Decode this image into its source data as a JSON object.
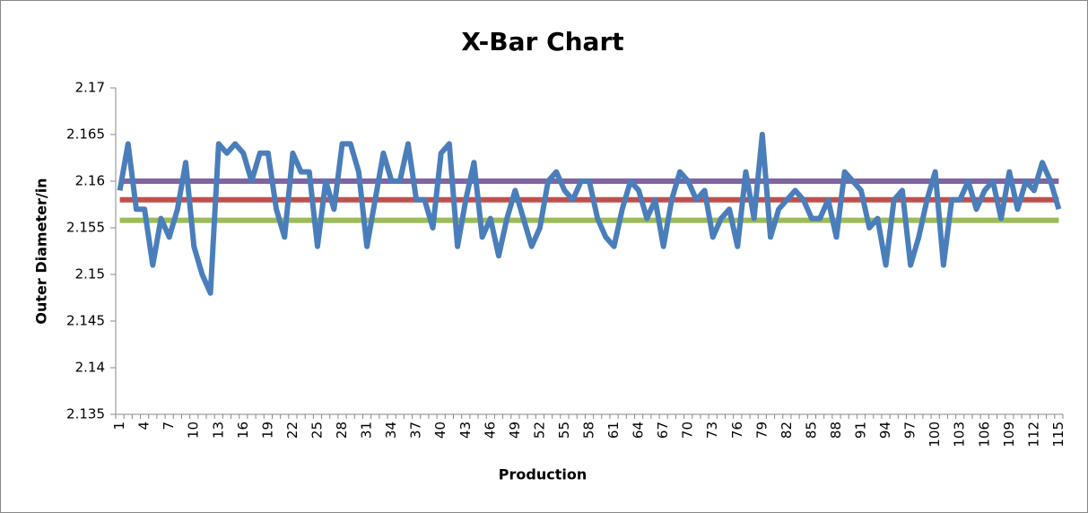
{
  "chart_data": {
    "type": "line",
    "title": "X-Bar Chart",
    "x_label": "Production",
    "y_label": "Outer Diameter/in",
    "categories": [
      "1",
      null,
      null,
      "4",
      null,
      null,
      "7",
      null,
      null,
      "10",
      null,
      null,
      "13",
      null,
      null,
      "16",
      null,
      null,
      "19",
      null,
      null,
      "22",
      null,
      null,
      "25",
      null,
      null,
      "28",
      null,
      null,
      "31",
      null,
      null,
      "34",
      null,
      null,
      "37",
      null,
      null,
      "40",
      null,
      null,
      "43",
      null,
      null,
      "46",
      null,
      null,
      "49",
      null,
      null,
      "52",
      null,
      null,
      "55",
      null,
      null,
      "58",
      null,
      null,
      "61",
      null,
      null,
      "64",
      null,
      null,
      "67",
      null,
      null,
      "70",
      null,
      null,
      "73",
      null,
      null,
      "76",
      null,
      null,
      "79",
      null,
      null,
      "82",
      null,
      null,
      "85",
      null,
      null,
      "88",
      null,
      null,
      "91",
      null,
      null,
      "94",
      null,
      null,
      "97",
      null,
      null,
      "100",
      null,
      null,
      "103",
      null,
      null,
      "106",
      null,
      null,
      "109",
      null,
      null,
      "112",
      null,
      null,
      "115"
    ],
    "series": [
      {
        "color": "#4a7ebb",
        "values": [
          2.159,
          2.164,
          2.157,
          2.157,
          2.151,
          2.156,
          2.154,
          2.157,
          2.162,
          2.153,
          2.15,
          2.148,
          2.164,
          2.163,
          2.164,
          2.163,
          2.16,
          2.163,
          2.163,
          2.157,
          2.154,
          2.163,
          2.161,
          2.161,
          2.153,
          2.16,
          2.157,
          2.164,
          2.164,
          2.161,
          2.153,
          2.158,
          2.163,
          2.16,
          2.16,
          2.164,
          2.158,
          2.158,
          2.155,
          2.163,
          2.164,
          2.153,
          2.158,
          2.162,
          2.154,
          2.156,
          2.152,
          2.156,
          2.159,
          2.156,
          2.153,
          2.155,
          2.16,
          2.161,
          2.159,
          2.158,
          2.16,
          2.16,
          2.156,
          2.154,
          2.153,
          2.157,
          2.16,
          2.159,
          2.156,
          2.158,
          2.153,
          2.158,
          2.161,
          2.16,
          2.158,
          2.159,
          2.154,
          2.156,
          2.157,
          2.153,
          2.161,
          2.156,
          2.165,
          2.154,
          2.157,
          2.158,
          2.159,
          2.158,
          2.156,
          2.156,
          2.158,
          2.154,
          2.161,
          2.16,
          2.159,
          2.155,
          2.156,
          2.151,
          2.158,
          2.159,
          2.151,
          2.154,
          2.158,
          2.161,
          2.151,
          2.158,
          2.158,
          2.16,
          2.157,
          2.159,
          2.16,
          2.156,
          2.161,
          2.157,
          2.16,
          2.159,
          2.162,
          2.16,
          2.157
        ]
      },
      {
        "color": "#8064a2",
        "values": [
          2.16,
          2.16,
          2.16,
          2.16,
          2.16,
          2.16,
          2.16,
          2.16,
          2.16,
          2.16,
          2.16,
          2.16,
          2.16,
          2.16,
          2.16,
          2.16,
          2.16,
          2.16,
          2.16,
          2.16,
          2.16,
          2.16,
          2.16,
          2.16,
          2.16,
          2.16,
          2.16,
          2.16,
          2.16,
          2.16,
          2.16,
          2.16,
          2.16,
          2.16,
          2.16,
          2.16,
          2.16,
          2.16,
          2.16,
          2.16,
          2.16,
          2.16,
          2.16,
          2.16,
          2.16,
          2.16,
          2.16,
          2.16,
          2.16,
          2.16,
          2.16,
          2.16,
          2.16,
          2.16,
          2.16,
          2.16,
          2.16,
          2.16,
          2.16,
          2.16,
          2.16,
          2.16,
          2.16,
          2.16,
          2.16,
          2.16,
          2.16,
          2.16,
          2.16,
          2.16,
          2.16,
          2.16,
          2.16,
          2.16,
          2.16,
          2.16,
          2.16,
          2.16,
          2.16,
          2.16,
          2.16,
          2.16,
          2.16,
          2.16,
          2.16,
          2.16,
          2.16,
          2.16,
          2.16,
          2.16,
          2.16,
          2.16,
          2.16,
          2.16,
          2.16,
          2.16,
          2.16,
          2.16,
          2.16,
          2.16,
          2.16,
          2.16,
          2.16,
          2.16,
          2.16,
          2.16,
          2.16,
          2.16,
          2.16,
          2.16,
          2.16,
          2.16,
          2.16,
          2.16,
          2.16
        ]
      },
      {
        "color": "#c0504d",
        "values": [
          2.158,
          2.158,
          2.158,
          2.158,
          2.158,
          2.158,
          2.158,
          2.158,
          2.158,
          2.158,
          2.158,
          2.158,
          2.158,
          2.158,
          2.158,
          2.158,
          2.158,
          2.158,
          2.158,
          2.158,
          2.158,
          2.158,
          2.158,
          2.158,
          2.158,
          2.158,
          2.158,
          2.158,
          2.158,
          2.158,
          2.158,
          2.158,
          2.158,
          2.158,
          2.158,
          2.158,
          2.158,
          2.158,
          2.158,
          2.158,
          2.158,
          2.158,
          2.158,
          2.158,
          2.158,
          2.158,
          2.158,
          2.158,
          2.158,
          2.158,
          2.158,
          2.158,
          2.158,
          2.158,
          2.158,
          2.158,
          2.158,
          2.158,
          2.158,
          2.158,
          2.158,
          2.158,
          2.158,
          2.158,
          2.158,
          2.158,
          2.158,
          2.158,
          2.158,
          2.158,
          2.158,
          2.158,
          2.158,
          2.158,
          2.158,
          2.158,
          2.158,
          2.158,
          2.158,
          2.158,
          2.158,
          2.158,
          2.158,
          2.158,
          2.158,
          2.158,
          2.158,
          2.158,
          2.158,
          2.158,
          2.158,
          2.158,
          2.158,
          2.158,
          2.158,
          2.158,
          2.158,
          2.158,
          2.158,
          2.158,
          2.158,
          2.158,
          2.158,
          2.158,
          2.158,
          2.158,
          2.158,
          2.158,
          2.158,
          2.158,
          2.158,
          2.158,
          2.158,
          2.158,
          2.158
        ]
      },
      {
        "color": "#9bbb59",
        "values": [
          2.1558,
          2.1558,
          2.1558,
          2.1558,
          2.1558,
          2.1558,
          2.1558,
          2.1558,
          2.1558,
          2.1558,
          2.1558,
          2.1558,
          2.1558,
          2.1558,
          2.1558,
          2.1558,
          2.1558,
          2.1558,
          2.1558,
          2.1558,
          2.1558,
          2.1558,
          2.1558,
          2.1558,
          2.1558,
          2.1558,
          2.1558,
          2.1558,
          2.1558,
          2.1558,
          2.1558,
          2.1558,
          2.1558,
          2.1558,
          2.1558,
          2.1558,
          2.1558,
          2.1558,
          2.1558,
          2.1558,
          2.1558,
          2.1558,
          2.1558,
          2.1558,
          2.1558,
          2.1558,
          2.1558,
          2.1558,
          2.1558,
          2.1558,
          2.1558,
          2.1558,
          2.1558,
          2.1558,
          2.1558,
          2.1558,
          2.1558,
          2.1558,
          2.1558,
          2.1558,
          2.1558,
          2.1558,
          2.1558,
          2.1558,
          2.1558,
          2.1558,
          2.1558,
          2.1558,
          2.1558,
          2.1558,
          2.1558,
          2.1558,
          2.1558,
          2.1558,
          2.1558,
          2.1558,
          2.1558,
          2.1558,
          2.1558,
          2.1558,
          2.1558,
          2.1558,
          2.1558,
          2.1558,
          2.1558,
          2.1558,
          2.1558,
          2.1558,
          2.1558,
          2.1558,
          2.1558,
          2.1558,
          2.1558,
          2.1558,
          2.1558,
          2.1558,
          2.1558,
          2.1558,
          2.1558,
          2.1558,
          2.1558,
          2.1558,
          2.1558,
          2.1558,
          2.1558,
          2.1558,
          2.1558,
          2.1558,
          2.1558,
          2.1558,
          2.1558,
          2.1558,
          2.1558,
          2.1558,
          2.1558
        ]
      }
    ],
    "ylim": [
      2.135,
      2.17
    ],
    "yticks": [
      2.135,
      2.14,
      2.145,
      2.15,
      2.155,
      2.16,
      2.165,
      2.17
    ],
    "grid": false
  }
}
